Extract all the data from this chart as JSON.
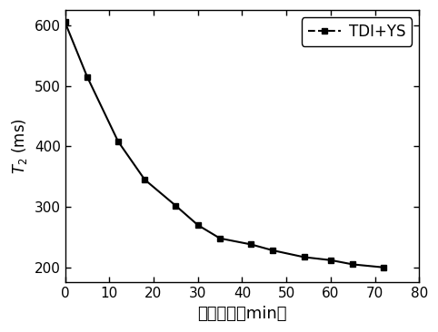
{
  "x": [
    0,
    5,
    12,
    18,
    25,
    30,
    35,
    42,
    47,
    54,
    60,
    65,
    72
  ],
  "y": [
    605,
    515,
    408,
    345,
    302,
    270,
    248,
    238,
    228,
    217,
    212,
    205,
    200
  ],
  "xlim": [
    0,
    80
  ],
  "ylim": [
    175,
    625
  ],
  "xticks": [
    0,
    10,
    20,
    30,
    40,
    50,
    60,
    70,
    80
  ],
  "yticks": [
    200,
    300,
    400,
    500,
    600
  ],
  "xlabel": "反应时间（min）",
  "legend_label": "TDI+YS",
  "line_color": "#000000",
  "marker": "s",
  "marker_size": 5,
  "line_width": 1.5,
  "background_color": "#ffffff",
  "tick_labelsize": 11,
  "legend_fontsize": 12
}
